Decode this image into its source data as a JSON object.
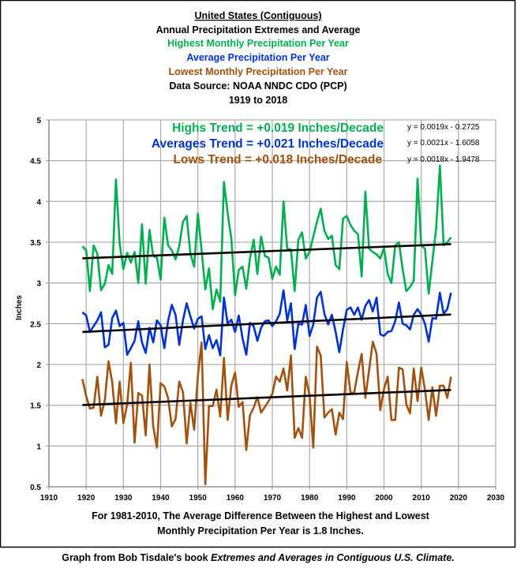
{
  "chart_data": {
    "type": "line",
    "title_lines": [
      {
        "text": "United States (Contiguous)",
        "color": "#000000"
      },
      {
        "text": "Annual Precipitation Extremes and Average",
        "color": "#000000"
      },
      {
        "text": "Highest Monthly Precipitation Per Year",
        "color": "#00b050"
      },
      {
        "text": "Average Precipitation Per Year",
        "color": "#0033cc"
      },
      {
        "text": "Lowest Monthly Precipitation Per Year",
        "color": "#a0520f"
      },
      {
        "text": "Data Source: NOAA NNDC CDO (PCP)",
        "color": "#000000"
      },
      {
        "text": "1919 to 2018",
        "color": "#000000"
      }
    ],
    "ylabel": "Inches",
    "xlabel": "",
    "xlim": [
      1910,
      2030
    ],
    "ylim": [
      0.5,
      5
    ],
    "xticks": [
      1910,
      1920,
      1930,
      1940,
      1950,
      1960,
      1970,
      1980,
      1990,
      2000,
      2010,
      2020,
      2030
    ],
    "yticks": [
      "0.5",
      "1",
      "1.5",
      "2",
      "2.5",
      "3",
      "3.5",
      "4",
      "4.5",
      "5"
    ],
    "grid": true,
    "x_start": 1919,
    "series": [
      {
        "name": "Highest Monthly Precipitation Per Year",
        "color": "#00b050",
        "trend_label": "Highs Trend = +0.019 Inches/Decade",
        "equation": "y = 0.0019x - 0.2725",
        "values": [
          3.45,
          3.4,
          2.9,
          3.46,
          3.36,
          2.91,
          2.99,
          3.22,
          3.11,
          4.27,
          3.48,
          3.17,
          3.37,
          3.25,
          3.38,
          3.0,
          3.72,
          2.99,
          3.65,
          3.33,
          3.31,
          3.04,
          3.8,
          3.46,
          3.4,
          3.29,
          3.45,
          3.75,
          3.82,
          3.36,
          3.2,
          3.85,
          3.4,
          2.92,
          3.18,
          2.68,
          2.92,
          2.77,
          4.24,
          3.86,
          3.54,
          2.85,
          3.16,
          3.2,
          2.93,
          3.3,
          3.53,
          3.11,
          3.57,
          3.33,
          3.31,
          3.05,
          3.2,
          3.1,
          4.0,
          3.42,
          3.41,
          2.9,
          3.53,
          3.62,
          3.3,
          3.38,
          3.57,
          3.75,
          3.91,
          3.64,
          3.54,
          3.58,
          3.22,
          3.17,
          3.79,
          3.82,
          3.71,
          3.64,
          3.6,
          3.08,
          4.12,
          3.42,
          3.38,
          3.35,
          3.3,
          3.43,
          3.11,
          3.0,
          3.46,
          3.5,
          3.17,
          2.9,
          2.95,
          3.03,
          4.28,
          3.46,
          3.42,
          2.87,
          3.27,
          3.66,
          4.44,
          3.46,
          3.5,
          3.56
        ]
      },
      {
        "name": "Average Precipitation Per Year",
        "color": "#0033cc",
        "trend_label": "Averages Trend = +0.021 Inches/Decade",
        "equation": "y = 0.0021x - 1.6058",
        "values": [
          2.64,
          2.6,
          2.4,
          2.47,
          2.54,
          2.64,
          2.21,
          2.24,
          2.57,
          2.66,
          2.47,
          2.51,
          2.12,
          2.2,
          2.29,
          2.53,
          2.27,
          2.14,
          2.45,
          2.27,
          2.54,
          2.48,
          2.2,
          2.53,
          2.73,
          2.61,
          2.24,
          2.54,
          2.75,
          2.59,
          2.44,
          2.56,
          2.59,
          2.19,
          2.36,
          2.2,
          2.3,
          2.11,
          2.82,
          2.5,
          2.55,
          2.4,
          2.6,
          2.32,
          2.12,
          2.51,
          2.47,
          2.29,
          2.45,
          2.53,
          2.54,
          2.47,
          2.53,
          2.62,
          2.91,
          2.54,
          2.75,
          2.19,
          2.5,
          2.49,
          2.73,
          2.35,
          2.49,
          2.82,
          2.89,
          2.62,
          2.49,
          2.61,
          2.4,
          2.15,
          2.43,
          2.67,
          2.7,
          2.61,
          2.7,
          2.55,
          2.72,
          2.79,
          2.65,
          2.82,
          2.37,
          2.35,
          2.4,
          2.41,
          2.53,
          2.76,
          2.5,
          2.48,
          2.43,
          2.61,
          2.68,
          2.61,
          2.5,
          2.28,
          2.57,
          2.56,
          2.88,
          2.62,
          2.68,
          2.88
        ]
      },
      {
        "name": "Lowest Monthly Precipitation Per Year",
        "color": "#a0520f",
        "trend_label": "Lows Trend = +0.018 Inches/Decade",
        "equation": "y = 0.0018x - 1.9478",
        "values": [
          1.82,
          1.61,
          1.46,
          1.47,
          1.85,
          1.37,
          1.56,
          2.04,
          1.78,
          1.28,
          1.79,
          1.28,
          1.51,
          2.02,
          1.04,
          1.65,
          1.62,
          1.13,
          2.0,
          1.24,
          0.98,
          1.77,
          1.73,
          1.59,
          1.24,
          1.33,
          1.79,
          1.66,
          1.03,
          1.53,
          1.2,
          1.86,
          2.27,
          0.53,
          1.49,
          1.49,
          1.69,
          1.36,
          2.08,
          1.32,
          1.74,
          1.9,
          1.48,
          1.54,
          0.95,
          1.38,
          1.47,
          1.6,
          1.41,
          1.48,
          1.55,
          1.64,
          1.85,
          1.79,
          1.95,
          1.68,
          2.11,
          1.1,
          1.22,
          1.1,
          1.85,
          1.62,
          0.98,
          2.22,
          2.11,
          1.35,
          1.41,
          1.45,
          1.14,
          1.41,
          1.33,
          2.03,
          1.65,
          1.66,
          1.91,
          2.13,
          1.59,
          1.93,
          2.28,
          2.13,
          1.44,
          1.7,
          1.85,
          1.32,
          1.32,
          1.96,
          1.94,
          1.51,
          1.4,
          1.95,
          1.55,
          1.96,
          1.69,
          1.32,
          1.72,
          1.37,
          1.74,
          1.74,
          1.59,
          1.85
        ]
      }
    ],
    "trend_line_color": "#000000",
    "footnote_lines": [
      "For 1981-2010, The Average Difference Between the Highest and Lowest",
      "Monthly Precipitation Per Year is 1.8 Inches."
    ]
  },
  "credit": {
    "prefix": "Graph from Bob Tisdale's book ",
    "book_title": "Extremes and Averages in Contiguous U.S. Climate."
  }
}
